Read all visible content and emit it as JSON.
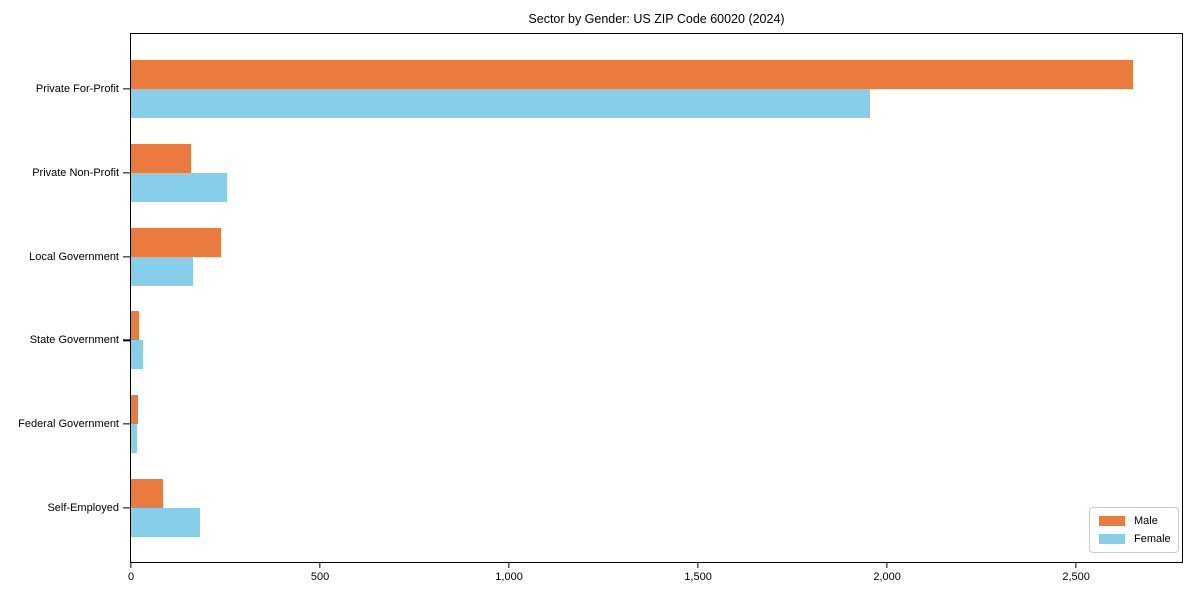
{
  "title": "Sector by Gender: US ZIP Code 60020 (2024)",
  "chart_data": {
    "type": "bar",
    "orientation": "horizontal",
    "title": "Sector by Gender: US ZIP Code 60020 (2024)",
    "categories": [
      "Private For-Profit",
      "Private Non-Profit",
      "Local Government",
      "State Government",
      "Federal Government",
      "Self-Employed"
    ],
    "series": [
      {
        "name": "Male",
        "color": "#EA7A3D",
        "values": [
          2650,
          158,
          239,
          22,
          18,
          84
        ]
      },
      {
        "name": "Female",
        "color": "#87CEEB",
        "values": [
          1955,
          255,
          165,
          33,
          15,
          182
        ]
      }
    ],
    "xlabel": "",
    "ylabel": "",
    "xlim": [
      0,
      2780
    ],
    "xticks": [
      0,
      500,
      1000,
      1500,
      2000,
      2500
    ],
    "xtick_labels": [
      "0",
      "500",
      "1,000",
      "1,500",
      "2,000",
      "2,500"
    ],
    "legend_position": "lower right",
    "grid": false
  }
}
